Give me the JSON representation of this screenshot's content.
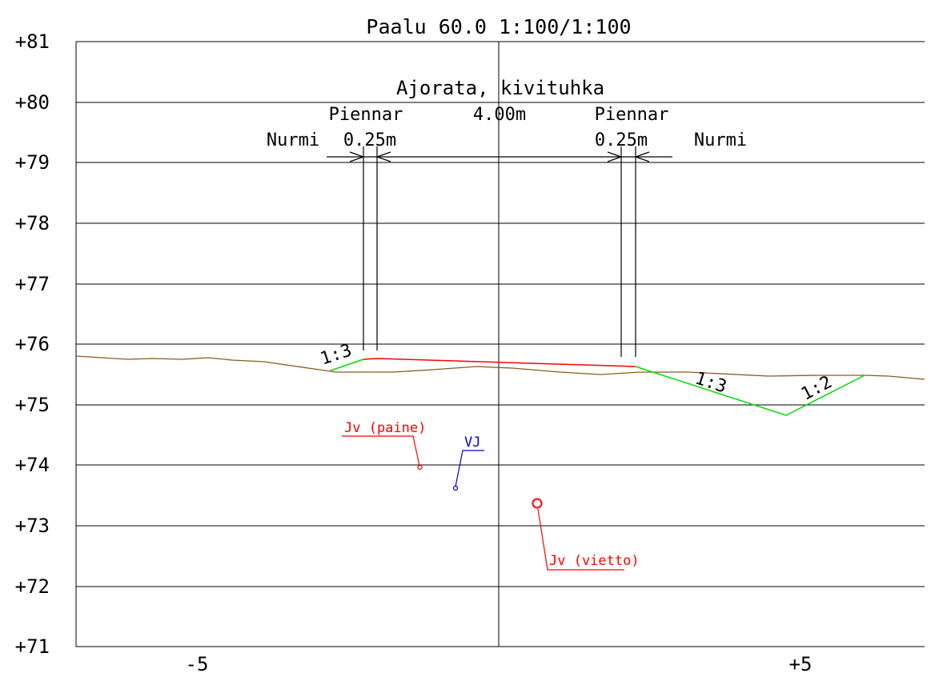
{
  "title": "Paalu 60.0  1:100/1:100",
  "y_axis": {
    "labels": [
      "+81",
      "+80",
      "+79",
      "+78",
      "+77",
      "+76",
      "+75",
      "+74",
      "+73",
      "+72",
      "+71"
    ]
  },
  "x_axis": {
    "labels": [
      "-5",
      "+5"
    ]
  },
  "dimensions": {
    "road_label": "Ajorata, kivituhka",
    "road_width": "4.00m",
    "left_shoulder_label": "Piennar",
    "left_shoulder_width": "0.25m",
    "right_shoulder_label": "Piennar",
    "right_shoulder_width": "0.25m",
    "left_outer_label": "Nurmi",
    "right_outer_label": "Nurmi"
  },
  "slopes": {
    "left_fill": "1:3",
    "right_fore": "1:3",
    "right_back": "1:2"
  },
  "utilities": [
    {
      "label": "Jv (paine)",
      "color": "#ff0000"
    },
    {
      "label": "VJ",
      "color": "#0000cc"
    },
    {
      "label": "Jv (vietto)",
      "color": "#ff0000"
    }
  ],
  "colors": {
    "ground": "#8b5a1e",
    "design_surface": "#ff0000",
    "slope": "#00dd00",
    "grid": "#000000"
  }
}
